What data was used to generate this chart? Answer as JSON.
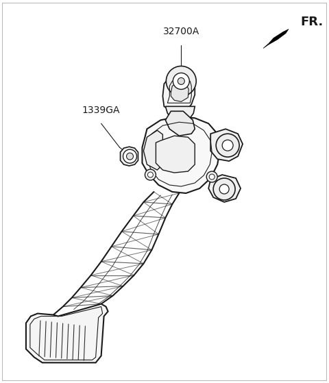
{
  "background_color": "#ffffff",
  "line_color": "#1a1a1a",
  "label_32700A": "32700A",
  "label_1339GA": "1339GA",
  "label_FR": "FR.",
  "fig_width": 4.8,
  "fig_height": 5.59,
  "dpi": 100
}
